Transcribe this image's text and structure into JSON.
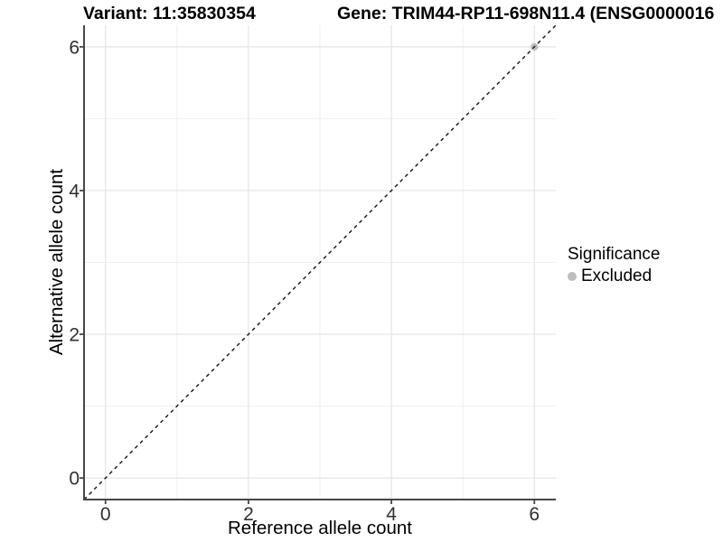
{
  "figure": {
    "title_left": "Variant: 11:35830354",
    "title_right": "Gene: TRIM44-RP11-698N11.4 (ENSG0000016",
    "background": "#ffffff"
  },
  "chart_data": {
    "type": "scatter",
    "xlabel": "Reference allele count",
    "ylabel": "Alternative allele count",
    "xlim": [
      -0.3,
      6.3
    ],
    "ylim": [
      -0.3,
      6.3
    ],
    "xticks": [
      0,
      2,
      4,
      6
    ],
    "yticks": [
      0,
      2,
      4,
      6
    ],
    "minor_xticks": [
      1,
      3,
      5
    ],
    "minor_yticks": [
      1,
      3,
      5
    ],
    "grid": {
      "major_color": "#e4e4e4",
      "minor_color": "#efefef",
      "background": "#ffffff"
    },
    "axis_color": "#474747",
    "tick_label_color": "#303030",
    "identity_line": {
      "style": "dashed",
      "color": "#111111",
      "from": [
        -0.3,
        -0.3
      ],
      "to": [
        6.3,
        6.3
      ]
    },
    "series": [
      {
        "name": "Excluded",
        "color": "#bdbdbd",
        "points": [
          [
            6,
            6
          ]
        ]
      }
    ],
    "legend": {
      "title": "Significance",
      "position": "right",
      "items": [
        {
          "label": "Excluded",
          "color": "#bdbdbd"
        }
      ]
    }
  }
}
